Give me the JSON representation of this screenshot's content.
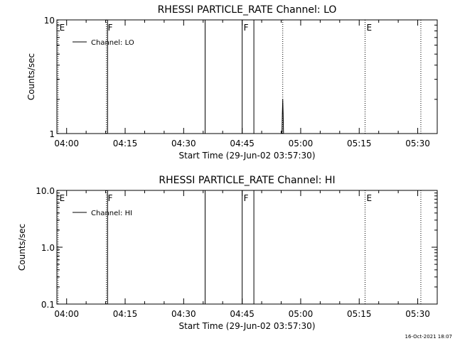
{
  "chart_data": [
    {
      "type": "line",
      "title": "RHESSI PARTICLE_RATE Channel: LO",
      "xlabel": "Start Time (29-Jun-02 03:57:30)",
      "ylabel": "Counts/sec",
      "x_tick_labels": [
        "04:00",
        "04:15",
        "04:30",
        "04:45",
        "05:00",
        "05:15",
        "05:30"
      ],
      "x_ticks_minutes_after_start": [
        2.5,
        17.5,
        32.5,
        47.5,
        62.5,
        77.5,
        92.5
      ],
      "xlim_minutes_after_start": [
        0,
        97.5
      ],
      "y_scale": "log",
      "ylim": [
        1,
        10
      ],
      "y_tick_labels": [
        "1",
        "10"
      ],
      "y_tick_values": [
        1,
        10
      ],
      "legend": {
        "placement": "top-left",
        "entries": [
          "Channel: LO"
        ]
      },
      "series": [
        {
          "name": "Channel: LO",
          "points": [
            [
              57.7,
              1.0
            ],
            [
              57.8,
              1.5
            ],
            [
              57.9,
              2.0
            ],
            [
              58.0,
              1.5
            ],
            [
              58.1,
              1.0
            ]
          ]
        }
      ],
      "markers": [
        {
          "label": "E",
          "minute": 0.3,
          "style": "dotted"
        },
        {
          "label": "F",
          "minute": 12.7,
          "style": "dotted"
        },
        {
          "label": "",
          "minute": 13.0,
          "style": "solid"
        },
        {
          "label": "",
          "minute": 38.0,
          "style": "solid"
        },
        {
          "label": "F",
          "minute": 47.5,
          "style": "solid"
        },
        {
          "label": "",
          "minute": 50.5,
          "style": "solid"
        },
        {
          "label": "",
          "minute": 57.9,
          "style": "dotted"
        },
        {
          "label": "E",
          "minute": 79.0,
          "style": "dotted"
        },
        {
          "label": "",
          "minute": 93.3,
          "style": "dotted"
        }
      ]
    },
    {
      "type": "line",
      "title": "RHESSI PARTICLE_RATE Channel: HI",
      "xlabel": "Start Time (29-Jun-02 03:57:30)",
      "ylabel": "Counts/sec",
      "x_tick_labels": [
        "04:00",
        "04:15",
        "04:30",
        "04:45",
        "05:00",
        "05:15",
        "05:30"
      ],
      "x_ticks_minutes_after_start": [
        2.5,
        17.5,
        32.5,
        47.5,
        62.5,
        77.5,
        92.5
      ],
      "xlim_minutes_after_start": [
        0,
        97.5
      ],
      "y_scale": "log",
      "ylim": [
        0.1,
        10
      ],
      "y_tick_labels": [
        "0.1",
        "1.0",
        "10.0"
      ],
      "y_tick_values": [
        0.1,
        1,
        10
      ],
      "legend": {
        "placement": "top-left",
        "entries": [
          "Channel: HI"
        ]
      },
      "series": [
        {
          "name": "Channel: HI",
          "points": []
        }
      ],
      "markers": [
        {
          "label": "E",
          "minute": 0.3,
          "style": "dotted"
        },
        {
          "label": "F",
          "minute": 12.7,
          "style": "dotted"
        },
        {
          "label": "",
          "minute": 13.0,
          "style": "solid"
        },
        {
          "label": "",
          "minute": 38.0,
          "style": "solid"
        },
        {
          "label": "F",
          "minute": 47.5,
          "style": "solid"
        },
        {
          "label": "",
          "minute": 50.5,
          "style": "solid"
        },
        {
          "label": "E",
          "minute": 79.0,
          "style": "dotted"
        },
        {
          "label": "",
          "minute": 93.3,
          "style": "dotted"
        }
      ]
    }
  ],
  "footer": {
    "timestamp": "16-Oct-2021 18:07"
  }
}
